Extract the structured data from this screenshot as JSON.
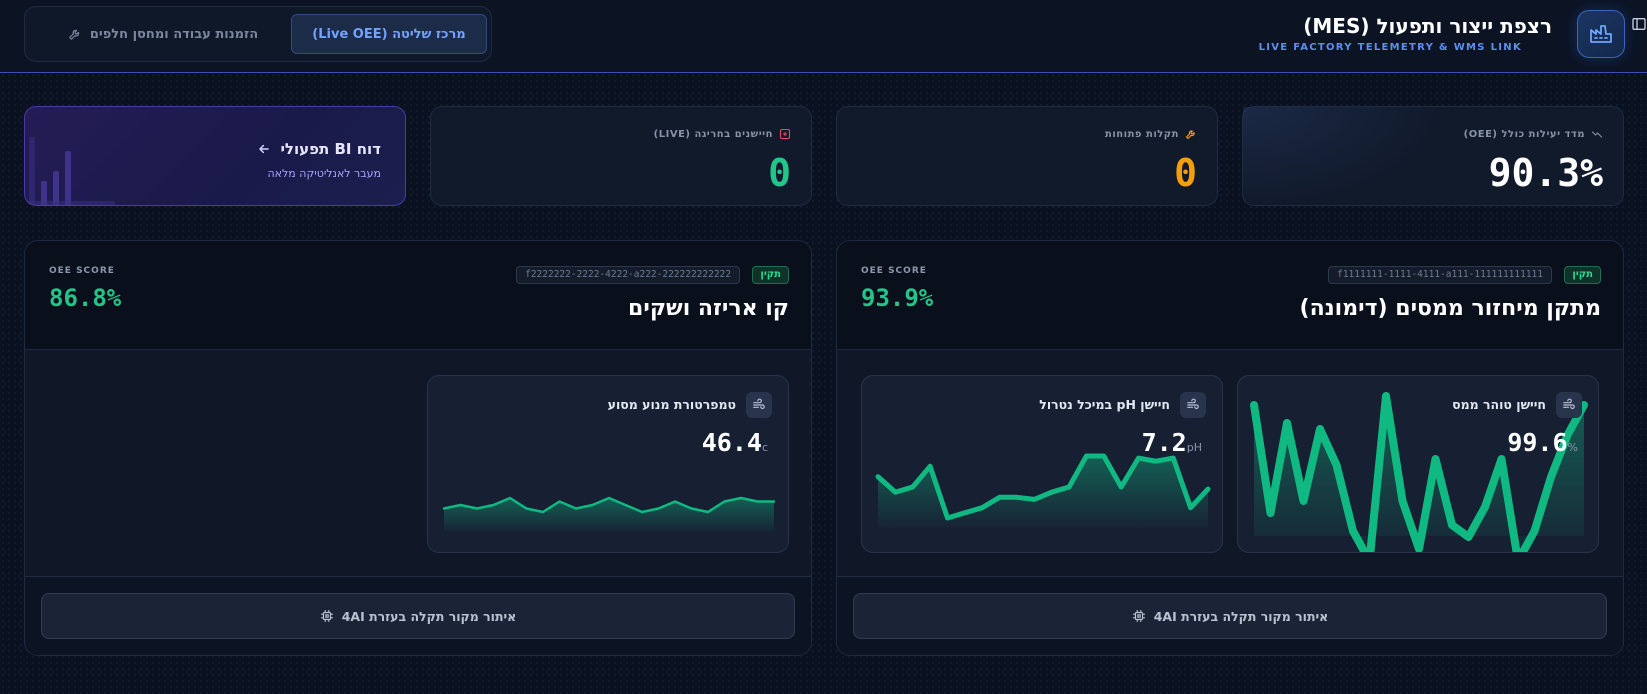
{
  "header": {
    "title": "רצפת ייצור ותפעול (MES)",
    "subtitle": "LIVE FACTORY TELEMETRY & WMS LINK",
    "logo_icon": "factory-icon",
    "sidebar_icon": "sidebar-toggle-icon"
  },
  "tabs": [
    {
      "label": "מרכז שליטה (Live OEE)",
      "active": true
    },
    {
      "label": "הזמנות עבודה ומחסן חלפים",
      "icon": "wrench-icon",
      "active": false
    }
  ],
  "kpis": {
    "oee": {
      "label": "מדד יעילות כולל (OEE)",
      "value": "90.3%",
      "icon": "trend-icon"
    },
    "faults": {
      "label": "תקלות פתוחות",
      "value": "0",
      "icon": "wrench-icon",
      "color": "#f59e0b"
    },
    "sensors": {
      "label": "חיישנים בחריגה (LIVE)",
      "value": "0",
      "icon": "alert-icon",
      "color": "#22c58a"
    },
    "bi": {
      "title": "דוח BI תפעולי",
      "subtitle": "מעבר לאנליטיקה מלאה",
      "icon": "arrow-left-icon"
    }
  },
  "machines": [
    {
      "title": "מתקן מיחזור ממסים (דימונה)",
      "status": "תקין",
      "id": "f1111111-1111-4111-a111-111111111111",
      "oee_label": "OEE SCORE",
      "oee_value": "93.9%",
      "rca_label": "איתור מקור תקלה בעזרת 4AI",
      "sensors": [
        {
          "name": "חיישן טוהר ממס",
          "value": "99.6",
          "unit": "%",
          "spark": [
            96,
            60,
            90,
            64,
            88,
            76,
            54,
            44,
            99,
            64,
            48,
            78,
            56,
            52,
            62,
            78,
            44,
            54,
            72,
            86,
            96
          ]
        },
        {
          "name": "חיישן pH במיכל נטרול",
          "value": "7.2",
          "unit": "pH",
          "spark": [
            7.0,
            6.85,
            6.9,
            7.1,
            6.6,
            6.65,
            6.7,
            6.8,
            6.8,
            6.78,
            6.85,
            6.9,
            7.2,
            7.2,
            6.9,
            7.18,
            7.15,
            7.18,
            6.7,
            6.88
          ]
        }
      ]
    },
    {
      "title": "קו אריזה ושקים",
      "status": "תקין",
      "id": "f2222222-2222-4222-a222-222222222222",
      "oee_label": "OEE SCORE",
      "oee_value": "86.8%",
      "rca_label": "איתור מקור תקלה בעזרת 4AI",
      "sensors": [
        {
          "name": "טמפרטורת מנוע מסוע",
          "value": "46.4",
          "unit": "c",
          "spark": [
            46.1,
            46.2,
            46.1,
            46.2,
            46.4,
            46.1,
            46.0,
            46.3,
            46.1,
            46.2,
            46.4,
            46.2,
            46.0,
            46.1,
            46.3,
            46.1,
            46.0,
            46.3,
            46.4,
            46.3,
            46.3
          ]
        }
      ]
    }
  ],
  "colors": {
    "accent": "#5f8ef0",
    "good": "#22c58a",
    "warn": "#f59e0b",
    "spark": "#10b981"
  }
}
